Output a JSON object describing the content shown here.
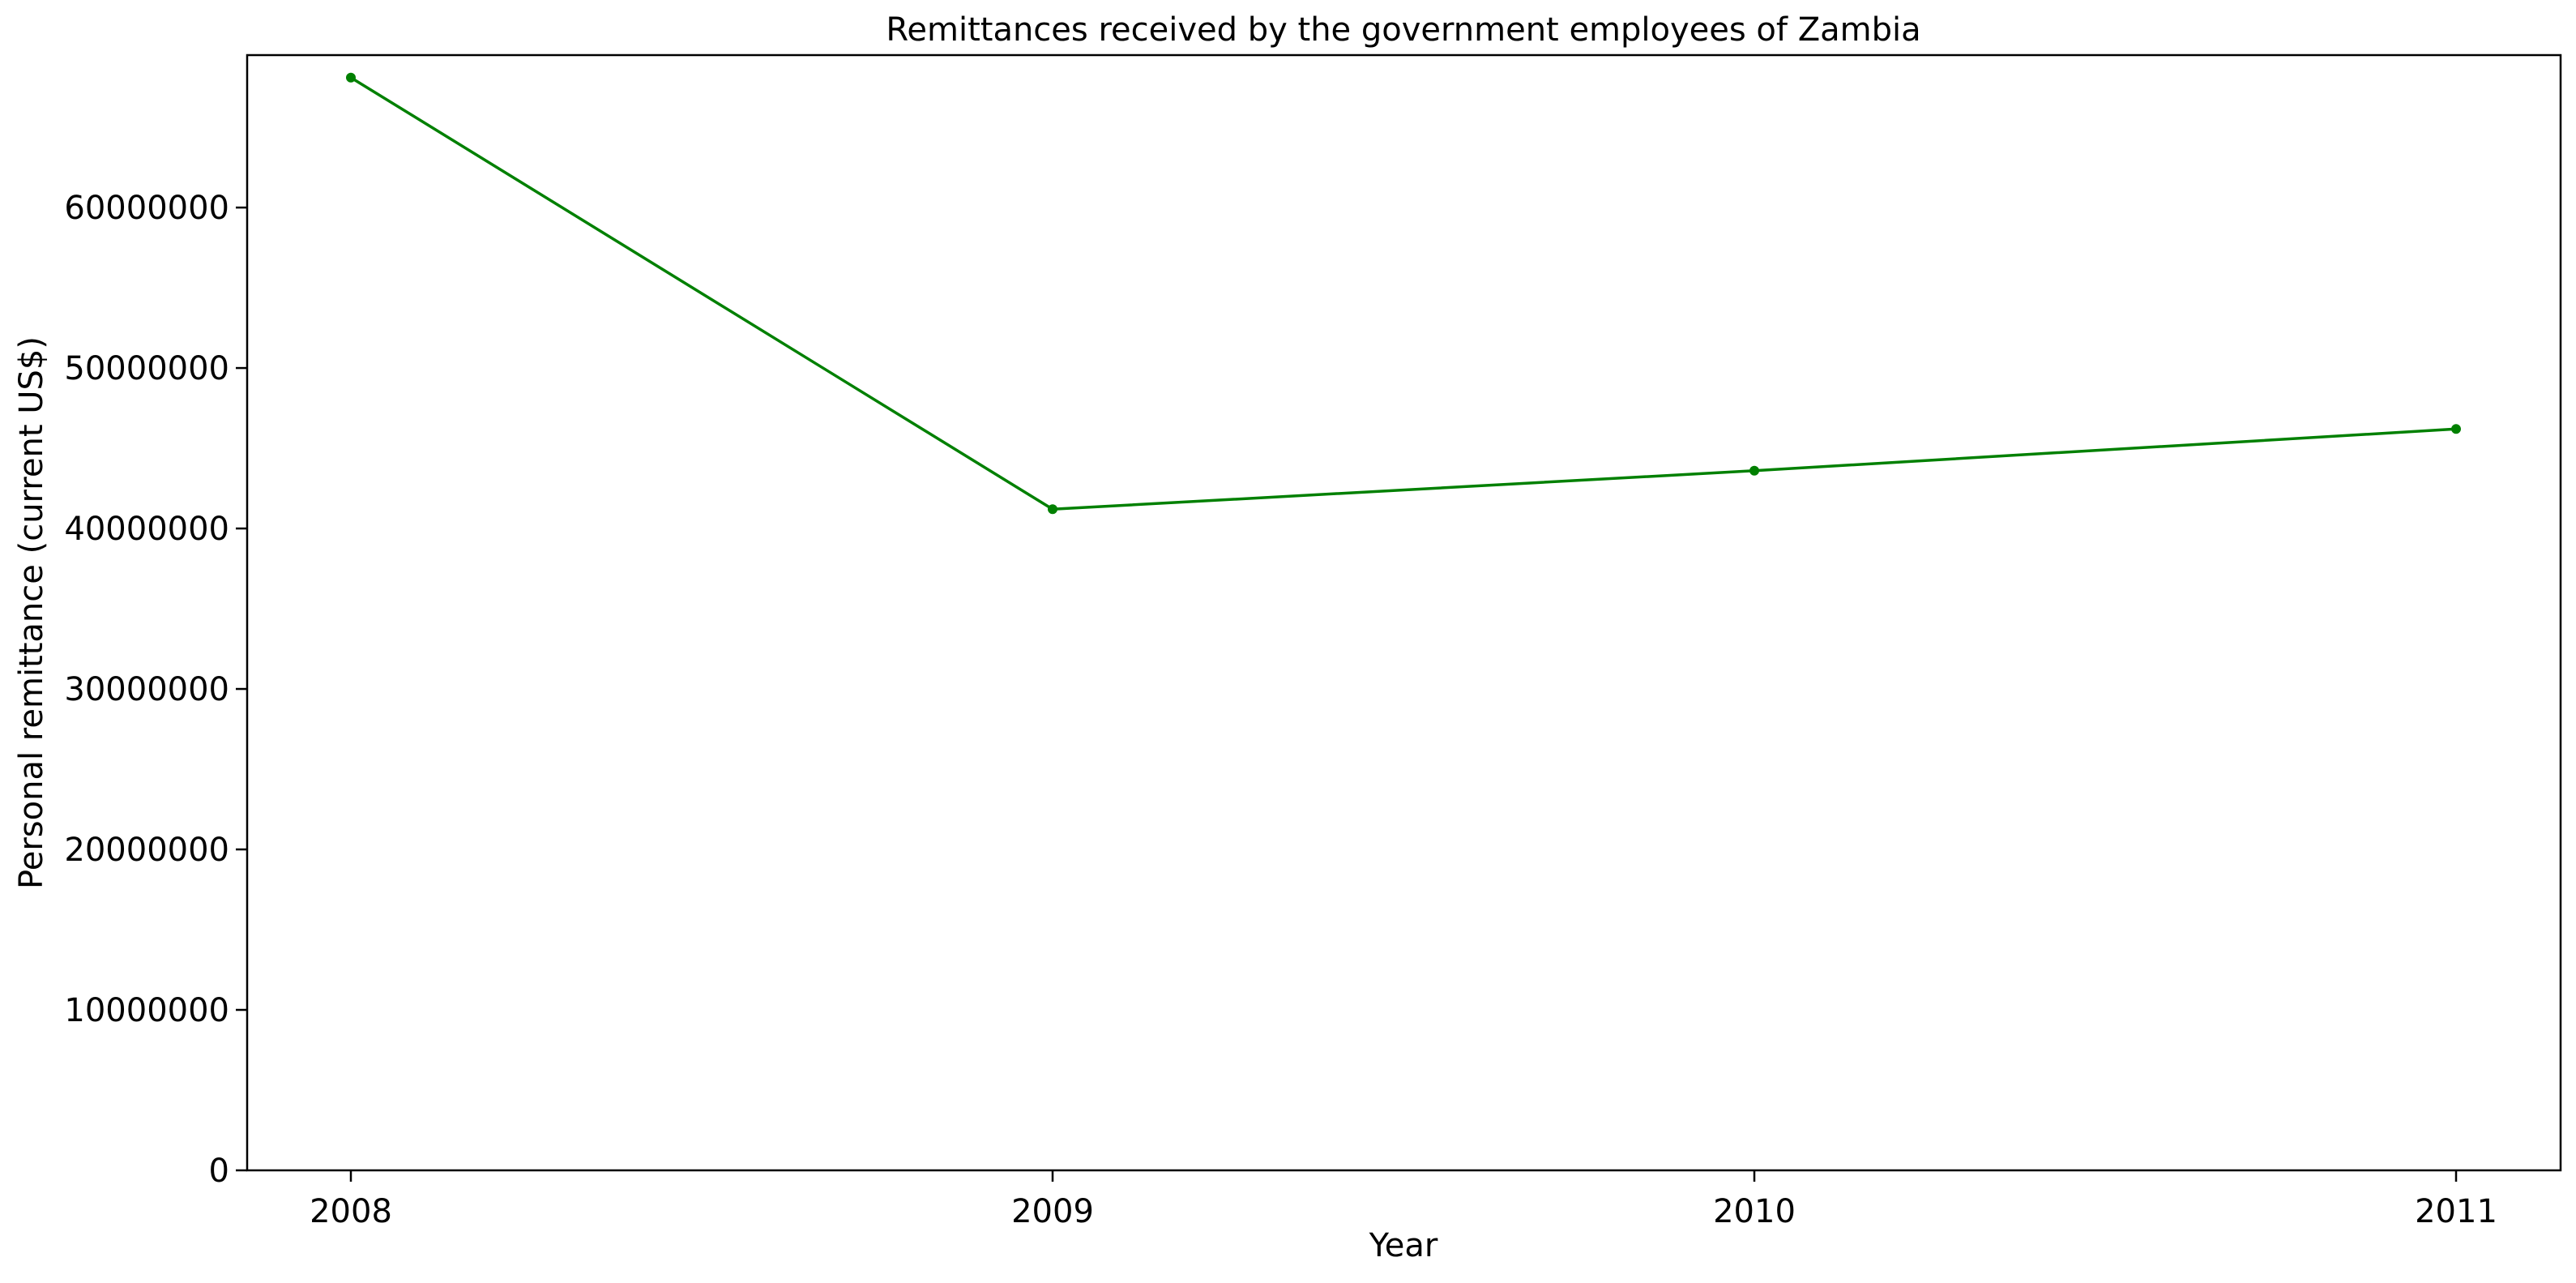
{
  "chart_data": {
    "type": "line",
    "title": "Remittances received by the government employees of Zambia",
    "xlabel": "Year",
    "ylabel": "Personal remittance (current US$)",
    "x": [
      "2008",
      "2009",
      "2010",
      "2011"
    ],
    "series": [
      {
        "name": "Personal remittance",
        "values": [
          68100000,
          41200000,
          43600000,
          46200000
        ],
        "color": "#008000",
        "marker": "circle"
      }
    ],
    "ylim": [
      0,
      69500000
    ],
    "yticks": [
      0,
      10000000,
      20000000,
      30000000,
      40000000,
      50000000,
      60000000
    ],
    "ytick_labels": [
      "0",
      "10000000",
      "20000000",
      "30000000",
      "40000000",
      "50000000",
      "60000000"
    ],
    "grid": false,
    "legend": "none"
  }
}
